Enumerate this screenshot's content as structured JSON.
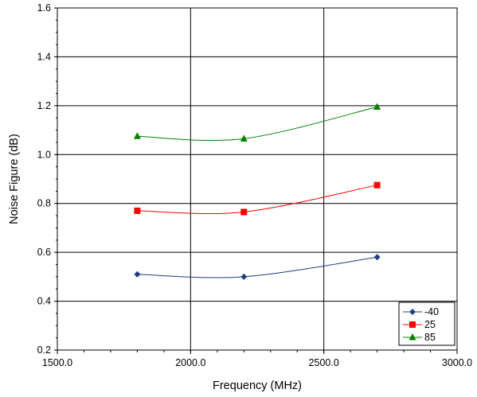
{
  "chart_data": {
    "type": "line",
    "xlabel": "Frequency (MHz)",
    "ylabel": "Noise Figure (dB)",
    "xlim": [
      1500,
      3000
    ],
    "ylim": [
      0.2,
      1.6
    ],
    "x_ticks": [
      "1500.0",
      "2000.0",
      "2500.0",
      "3000.0"
    ],
    "y_ticks": [
      "0.2",
      "0.4",
      "0.6",
      "0.8",
      "1.0",
      "1.2",
      "1.4",
      "1.6"
    ],
    "grid": "on",
    "legend_position": "bottom-right",
    "x": [
      1800,
      2200,
      2700
    ],
    "series": [
      {
        "name": "-40",
        "values": [
          0.51,
          0.5,
          0.58
        ],
        "color": "#1f3f7a",
        "marker": "diamond"
      },
      {
        "name": "25",
        "values": [
          0.77,
          0.765,
          0.875
        ],
        "color": "#ff0000",
        "marker": "square"
      },
      {
        "name": "85",
        "values": [
          1.075,
          1.065,
          1.195
        ],
        "color": "#008000",
        "marker": "triangle"
      }
    ]
  }
}
